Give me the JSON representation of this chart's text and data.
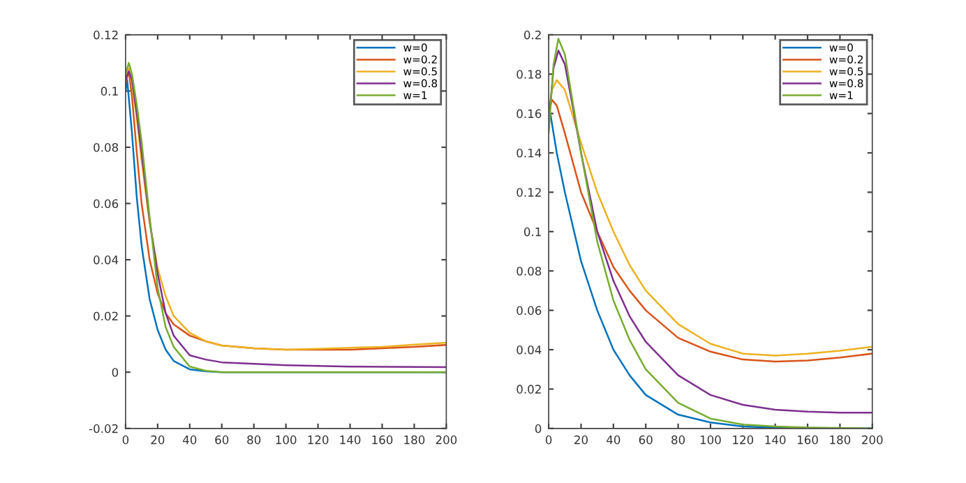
{
  "chart_data": [
    {
      "type": "line",
      "xlim": [
        0,
        200
      ],
      "ylim": [
        -0.02,
        0.12
      ],
      "xticks": [
        0,
        20,
        40,
        60,
        80,
        100,
        120,
        140,
        160,
        180,
        200
      ],
      "yticks": [
        -0.02,
        0,
        0.02,
        0.04,
        0.06,
        0.08,
        0.1,
        0.12
      ],
      "legend": "top right",
      "grid": false,
      "series": [
        {
          "name": "w=0",
          "color": "#0072bd",
          "x": [
            0,
            1,
            4,
            7,
            10,
            15,
            20,
            25,
            30,
            40,
            50,
            60,
            100,
            200
          ],
          "values": [
            0.1,
            0.104,
            0.085,
            0.062,
            0.045,
            0.026,
            0.015,
            0.008,
            0.004,
            0.001,
            0.0003,
            0,
            0,
            0
          ]
        },
        {
          "name": "w=0.2",
          "color": "#d95319",
          "x": [
            0,
            2,
            4,
            7,
            10,
            15,
            20,
            25,
            30,
            40,
            50,
            60,
            80,
            100,
            120,
            140,
            160,
            180,
            200
          ],
          "values": [
            0.103,
            0.107,
            0.098,
            0.078,
            0.06,
            0.04,
            0.028,
            0.021,
            0.017,
            0.013,
            0.011,
            0.0095,
            0.0085,
            0.008,
            0.008,
            0.008,
            0.0085,
            0.009,
            0.0097
          ]
        },
        {
          "name": "w=0.5",
          "color": "#edb120",
          "x": [
            0,
            2,
            4,
            7,
            10,
            15,
            20,
            25,
            30,
            40,
            50,
            60,
            80,
            100,
            120,
            140,
            160,
            180,
            200
          ],
          "values": [
            0.105,
            0.108,
            0.103,
            0.09,
            0.075,
            0.053,
            0.037,
            0.027,
            0.02,
            0.014,
            0.011,
            0.0095,
            0.0085,
            0.008,
            0.0083,
            0.0087,
            0.009,
            0.0098,
            0.0105
          ]
        },
        {
          "name": "w=0.8",
          "color": "#7e2f8e",
          "x": [
            0,
            2,
            4,
            7,
            10,
            15,
            20,
            25,
            30,
            40,
            50,
            60,
            80,
            100,
            140,
            200
          ],
          "values": [
            0.104,
            0.107,
            0.104,
            0.092,
            0.078,
            0.054,
            0.035,
            0.021,
            0.013,
            0.006,
            0.0045,
            0.0035,
            0.003,
            0.0025,
            0.002,
            0.0018
          ]
        },
        {
          "name": "w=1",
          "color": "#77ac30",
          "x": [
            0,
            2,
            4,
            7,
            10,
            15,
            20,
            25,
            30,
            40,
            50,
            60,
            100,
            200
          ],
          "values": [
            0.106,
            0.11,
            0.106,
            0.095,
            0.082,
            0.055,
            0.03,
            0.016,
            0.009,
            0.002,
            0.0005,
            0,
            0,
            0
          ]
        }
      ]
    },
    {
      "type": "line",
      "xlim": [
        0,
        200
      ],
      "ylim": [
        0,
        0.2
      ],
      "xticks": [
        0,
        20,
        40,
        60,
        80,
        100,
        120,
        140,
        160,
        180,
        200
      ],
      "yticks": [
        0,
        0.02,
        0.04,
        0.06,
        0.08,
        0.1,
        0.12,
        0.14,
        0.16,
        0.18,
        0.2
      ],
      "legend": "top right",
      "grid": false,
      "series": [
        {
          "name": "w=0",
          "color": "#0072bd",
          "x": [
            0,
            5,
            10,
            20,
            30,
            40,
            50,
            60,
            80,
            100,
            120,
            140,
            160,
            200
          ],
          "values": [
            0.165,
            0.14,
            0.12,
            0.085,
            0.06,
            0.04,
            0.027,
            0.017,
            0.007,
            0.003,
            0.001,
            0.0005,
            0,
            0
          ]
        },
        {
          "name": "w=0.2",
          "color": "#d95319",
          "x": [
            0,
            2,
            5,
            10,
            20,
            30,
            40,
            50,
            60,
            80,
            100,
            120,
            140,
            160,
            180,
            200
          ],
          "values": [
            0.16,
            0.167,
            0.164,
            0.15,
            0.12,
            0.1,
            0.082,
            0.07,
            0.06,
            0.046,
            0.039,
            0.035,
            0.034,
            0.0345,
            0.036,
            0.038
          ]
        },
        {
          "name": "w=0.5",
          "color": "#edb120",
          "x": [
            0,
            2,
            5,
            10,
            20,
            30,
            40,
            50,
            60,
            80,
            100,
            120,
            140,
            160,
            180,
            200
          ],
          "values": [
            0.16,
            0.172,
            0.177,
            0.172,
            0.145,
            0.12,
            0.1,
            0.083,
            0.07,
            0.053,
            0.043,
            0.038,
            0.037,
            0.038,
            0.0395,
            0.0415
          ]
        },
        {
          "name": "w=0.8",
          "color": "#7e2f8e",
          "x": [
            0,
            3,
            6,
            10,
            15,
            20,
            30,
            40,
            50,
            60,
            80,
            100,
            120,
            140,
            160,
            180,
            200
          ],
          "values": [
            0.155,
            0.183,
            0.192,
            0.185,
            0.163,
            0.14,
            0.1,
            0.075,
            0.057,
            0.044,
            0.027,
            0.017,
            0.012,
            0.0095,
            0.0085,
            0.008,
            0.008
          ]
        },
        {
          "name": "w=1",
          "color": "#77ac30",
          "x": [
            0,
            3,
            6,
            10,
            15,
            20,
            30,
            40,
            50,
            60,
            80,
            100,
            120,
            140,
            160,
            200
          ],
          "values": [
            0.15,
            0.185,
            0.198,
            0.19,
            0.165,
            0.14,
            0.095,
            0.065,
            0.045,
            0.03,
            0.013,
            0.005,
            0.002,
            0.001,
            0.0005,
            0
          ]
        }
      ]
    }
  ]
}
